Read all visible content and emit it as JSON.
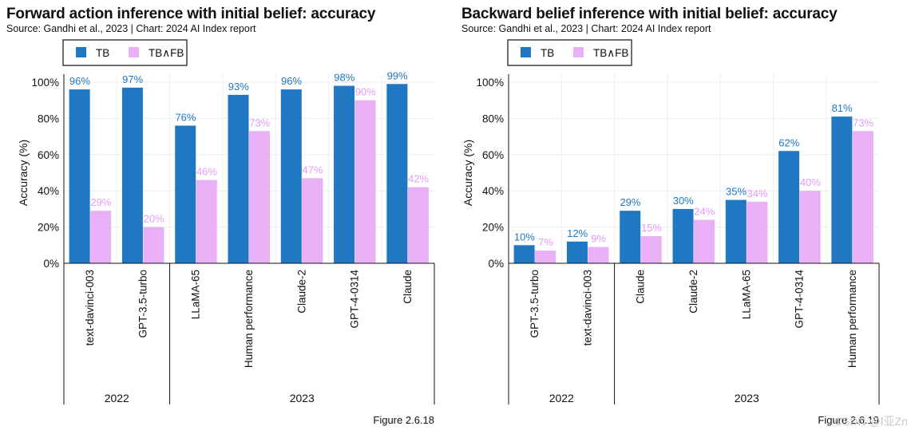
{
  "colors": {
    "tb": "#1f78c1",
    "tbfb": "#e9b0f8",
    "tb_label": "#1f78c1",
    "tbfb_label": "#e29af6",
    "grid": "#eeeeee"
  },
  "watermark": "CSDN @Ⅰ亚Zn",
  "chart_data": [
    {
      "type": "bar",
      "title": "Forward action inference with initial belief: accuracy",
      "source": "Source: Gandhi et al., 2023 | Chart: 2024 AI Index report",
      "figure": "Figure 2.6.18",
      "ylabel": "Accuracy (%)",
      "ylim": [
        0,
        100
      ],
      "yticks": [
        "0%",
        "20%",
        "40%",
        "60%",
        "80%",
        "100%"
      ],
      "legend": [
        "TB",
        "TB∧FB"
      ],
      "legend_position": "top-left",
      "categories": [
        "text-davinci-003",
        "GPT-3.5-turbo",
        "LLaMA-65",
        "Human performance",
        "Claude-2",
        "GPT-4-0314",
        "Claude"
      ],
      "groups": [
        {
          "label": "2022",
          "count": 2
        },
        {
          "label": "2023",
          "count": 5
        }
      ],
      "series": [
        {
          "name": "TB",
          "values": [
            96,
            97,
            76,
            93,
            96,
            98,
            99
          ],
          "labels": [
            "96%",
            "97%",
            "76%",
            "93%",
            "96%",
            "98%",
            "99%"
          ]
        },
        {
          "name": "TB∧FB",
          "values": [
            29,
            20,
            46,
            73,
            47,
            90,
            42
          ],
          "labels": [
            "29%",
            "20%",
            "46%",
            "73%",
            "47%",
            "90%",
            "42%"
          ]
        }
      ]
    },
    {
      "type": "bar",
      "title": "Backward belief inference with initial belief: accuracy",
      "source": "Source: Gandhi et al., 2023 | Chart: 2024 AI Index report",
      "figure": "Figure 2.6.19",
      "ylabel": "Accuracy (%)",
      "ylim": [
        0,
        100
      ],
      "yticks": [
        "0%",
        "20%",
        "40%",
        "60%",
        "80%",
        "100%"
      ],
      "legend": [
        "TB",
        "TB∧FB"
      ],
      "legend_position": "top-left",
      "categories": [
        "GPT-3.5-turbo",
        "text-davinci-003",
        "Claude",
        "Claude-2",
        "LLaMA-65",
        "GPT-4-0314",
        "Human performance"
      ],
      "groups": [
        {
          "label": "2022",
          "count": 2
        },
        {
          "label": "2023",
          "count": 5
        }
      ],
      "series": [
        {
          "name": "TB",
          "values": [
            10,
            12,
            29,
            30,
            35,
            62,
            81
          ],
          "labels": [
            "10%",
            "12%",
            "29%",
            "30%",
            "35%",
            "62%",
            "81%"
          ]
        },
        {
          "name": "TB∧FB",
          "values": [
            7,
            9,
            15,
            24,
            34,
            40,
            73
          ],
          "labels": [
            "7%",
            "9%",
            "15%",
            "24%",
            "34%",
            "40%",
            "73%"
          ]
        }
      ]
    }
  ]
}
